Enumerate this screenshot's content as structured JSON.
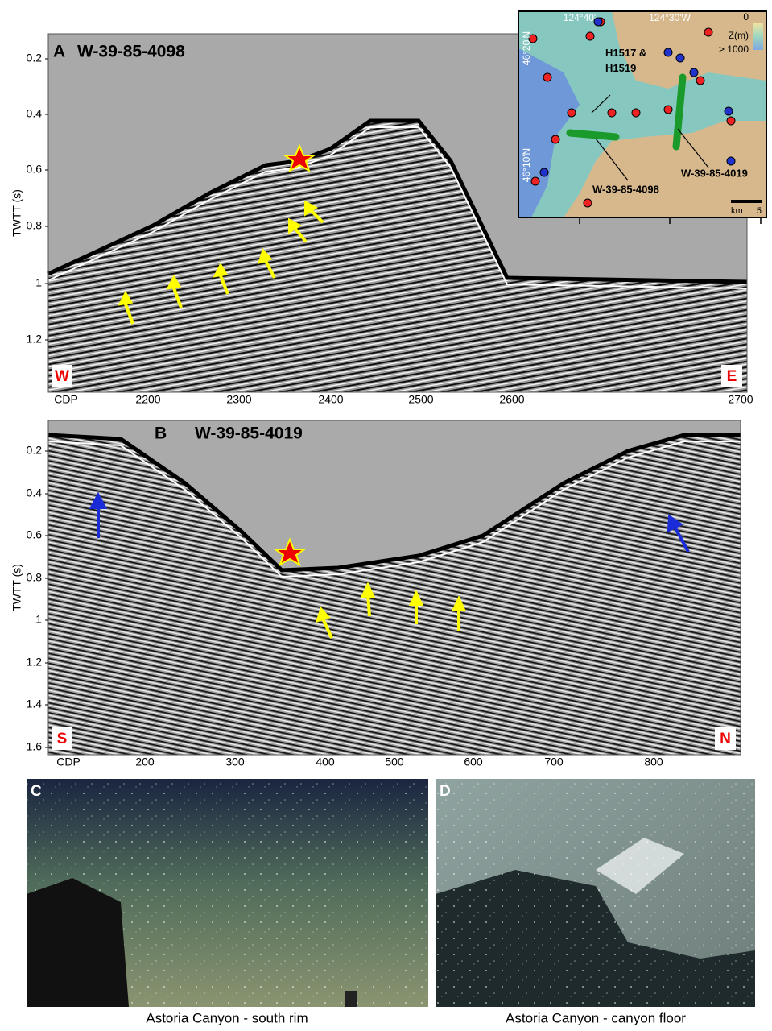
{
  "panel_a": {
    "letter": "A",
    "title": "W-39-85-4098",
    "y_axis_label": "TWTT (s)",
    "y_ticks": [
      "0.2",
      "0.4",
      "0.6",
      "0.8",
      "1",
      "1.2"
    ],
    "x_axis_label": "CDP",
    "x_ticks": [
      "2200",
      "2300",
      "2400",
      "2500",
      "2600",
      "2700"
    ],
    "left_label": "W",
    "right_label": "E"
  },
  "inset_map": {
    "lon_labels": [
      "124°40'",
      "124°30'W"
    ],
    "lat_labels": [
      "46°20'N",
      "46°10'N"
    ],
    "depth_scale": {
      "top": "0",
      "title": "Z(m)",
      "bottom": "> 1000"
    },
    "site_label": "H1517 & H1519",
    "line_labels": [
      "W-39-85-4098",
      "W-39-85-4019"
    ],
    "scale_bar": {
      "unit": "km",
      "length": "5"
    }
  },
  "panel_b": {
    "letter": "B",
    "title": "W-39-85-4019",
    "y_axis_label": "TWTT (s)",
    "y_ticks": [
      "0.2",
      "0.4",
      "0.6",
      "0.8",
      "1",
      "1.2",
      "1.4",
      "1.6"
    ],
    "x_axis_label": "CDP",
    "x_ticks": [
      "200",
      "300",
      "400",
      "500",
      "600",
      "700",
      "800"
    ],
    "left_label": "S",
    "right_label": "N"
  },
  "panel_c": {
    "letter": "C",
    "caption": "Astoria Canyon - south rim"
  },
  "panel_d": {
    "letter": "D",
    "caption": "Astoria Canyon - canyon floor"
  }
}
